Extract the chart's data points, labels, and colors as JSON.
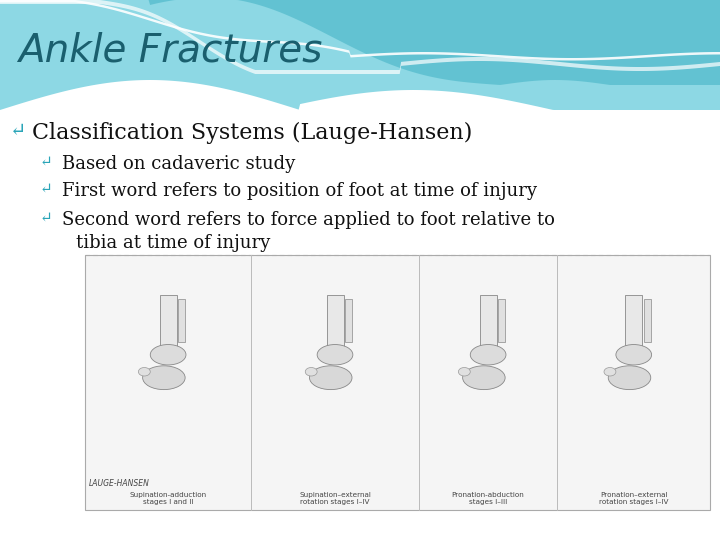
{
  "title": "Ankle Fractures",
  "title_color": "#1a5f6e",
  "title_fontsize": 28,
  "bullet1": "Classification Systems (Lauge-Hansen)",
  "bullet1_color": "#111111",
  "bullet1_fontsize": 16,
  "bullet2": "Based on cadaveric study",
  "bullet2_color": "#111111",
  "bullet2_fontsize": 13,
  "bullet3": "First word refers to position of foot at time of injury",
  "bullet3_color": "#111111",
  "bullet3_fontsize": 13,
  "bullet4_line1": "Second word refers to force applied to foot relative to",
  "bullet4_line2": "tibia at time of injury",
  "bullet4_color": "#111111",
  "bullet4_fontsize": 13,
  "bg_color": "#ffffff",
  "bullet_color": "#2aa5b8",
  "image_caption_left": "LAUGE-HANSEN",
  "image_caption_1": "Supination-adduction\nstages I and II",
  "image_caption_2": "Supination–external\nrotation stages I–IV",
  "image_caption_3": "Pronation-abduction\nstages I–III",
  "image_caption_4": "Pronation–external\nrotation stages I–IV",
  "wave_light": "#8dd8e4",
  "wave_mid": "#5bbfcf",
  "wave_dark": "#3aacbf"
}
